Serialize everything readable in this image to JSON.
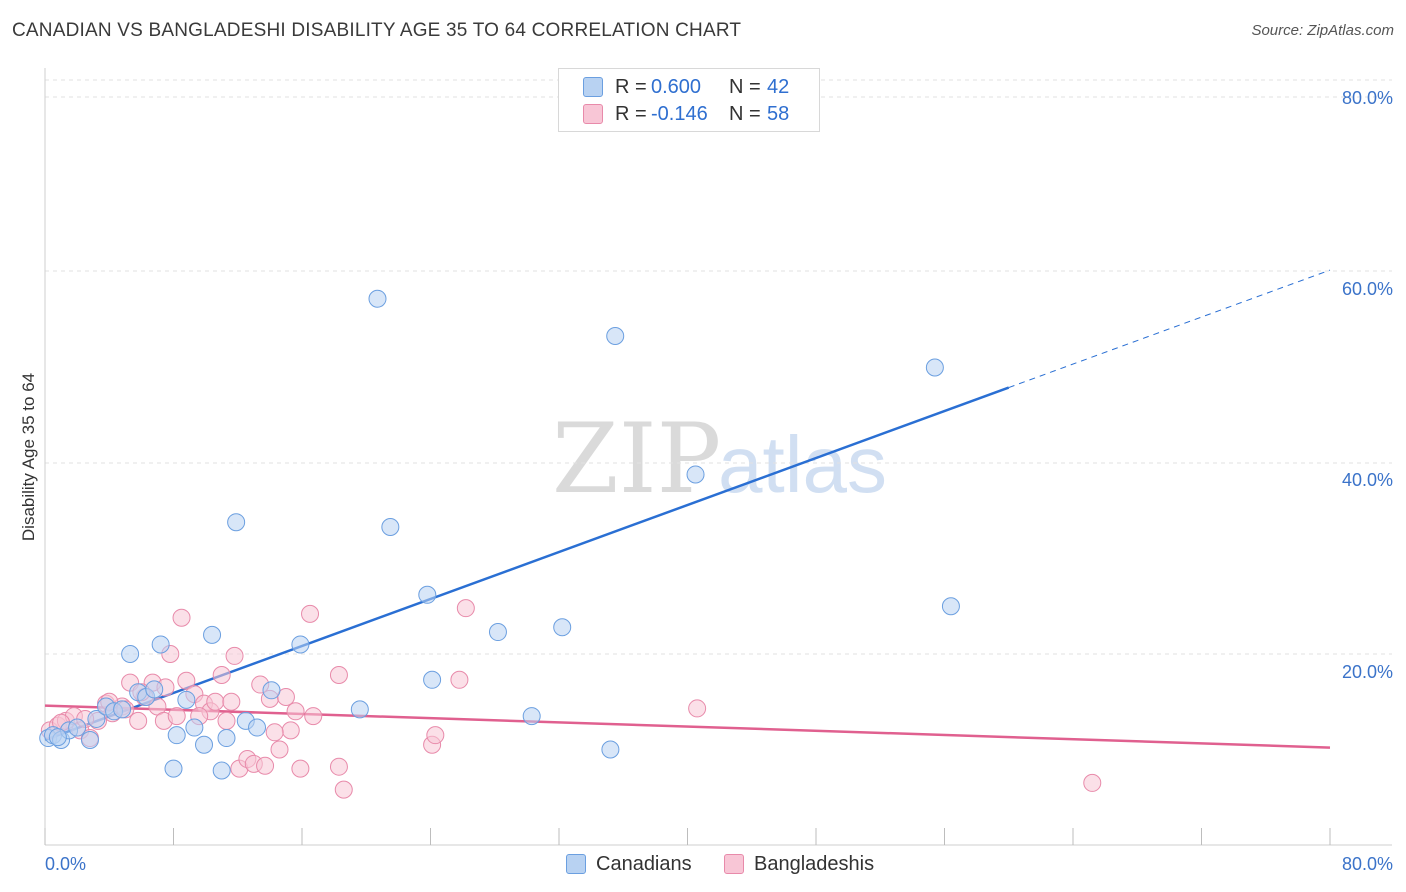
{
  "title": "CANADIAN VS BANGLADESHI DISABILITY AGE 35 TO 64 CORRELATION CHART",
  "source": "Source: ZipAtlas.com",
  "watermark": {
    "zip": "ZIP",
    "atlas": "atlas"
  },
  "legend": {
    "canadians": {
      "r_label": "R =",
      "r_value": "0.600",
      "n_label": "N =",
      "n_value": "42"
    },
    "bangladeshis": {
      "r_label": "R =",
      "r_value": "-0.146",
      "n_label": "N =",
      "n_value": "58"
    }
  },
  "colors": {
    "canadians_fill": "#b8d2f2",
    "canadians_stroke": "#6b9fe0",
    "canadians_line": "#2a6fd3",
    "bangladeshis_fill": "#f8c6d6",
    "bangladeshis_stroke": "#e88aaa",
    "bangladeshis_line": "#e0608f",
    "tick_label": "#3b73c9",
    "grid": "#e2e2e2"
  },
  "chart_data": {
    "type": "scatter",
    "title": "CANADIAN VS BANGLADESHI DISABILITY AGE 35 TO 64 CORRELATION CHART",
    "xlabel": "",
    "ylabel": "Disability Age 35 to 64",
    "xlim": [
      0,
      80
    ],
    "ylim": [
      0,
      80
    ],
    "x_tick_labels": [
      "0.0%",
      "80.0%"
    ],
    "y_ticks": [
      20,
      40,
      60,
      80
    ],
    "y_tick_labels": [
      "20.0%",
      "40.0%",
      "60.0%",
      "80.0%"
    ],
    "grid": true,
    "legend_position": "top-center",
    "series": [
      {
        "name": "Canadians",
        "r": 0.6,
        "n": 42,
        "points": [
          [
            0.2,
            11.2
          ],
          [
            0.5,
            11.5
          ],
          [
            1.0,
            11.0
          ],
          [
            1.5,
            12.0
          ],
          [
            2.0,
            12.3
          ],
          [
            2.8,
            11.0
          ],
          [
            3.2,
            13.2
          ],
          [
            3.8,
            14.5
          ],
          [
            4.3,
            14.0
          ],
          [
            4.8,
            14.2
          ],
          [
            5.3,
            20.0
          ],
          [
            5.8,
            16.0
          ],
          [
            6.3,
            15.5
          ],
          [
            6.8,
            16.3
          ],
          [
            7.2,
            21.0
          ],
          [
            8.0,
            8.0
          ],
          [
            8.2,
            11.5
          ],
          [
            8.8,
            15.2
          ],
          [
            9.3,
            12.3
          ],
          [
            9.9,
            10.5
          ],
          [
            10.4,
            22.0
          ],
          [
            11.0,
            7.8
          ],
          [
            11.3,
            11.2
          ],
          [
            11.9,
            33.8
          ],
          [
            12.5,
            13.0
          ],
          [
            13.2,
            12.3
          ],
          [
            14.1,
            16.2
          ],
          [
            15.9,
            21.0
          ],
          [
            19.6,
            14.2
          ],
          [
            20.7,
            57.2
          ],
          [
            21.5,
            33.3
          ],
          [
            23.8,
            26.2
          ],
          [
            24.1,
            17.3
          ],
          [
            28.2,
            22.3
          ],
          [
            30.3,
            13.5
          ],
          [
            32.2,
            22.8
          ],
          [
            35.2,
            10.0
          ],
          [
            35.5,
            53.3
          ],
          [
            40.5,
            38.8
          ],
          [
            55.4,
            50.0
          ],
          [
            56.4,
            25.0
          ],
          [
            0.8,
            11.3
          ]
        ],
        "trend": {
          "x0": 0.0,
          "y0": 11.0,
          "x1": 60.0,
          "y1": 47.9,
          "dash_to_x": 80.0,
          "dash_to_y": 60.2
        }
      },
      {
        "name": "Bangladeshis",
        "r": -0.146,
        "n": 58,
        "points": [
          [
            0.3,
            12.0
          ],
          [
            0.8,
            12.5
          ],
          [
            1.3,
            13.0
          ],
          [
            1.8,
            13.5
          ],
          [
            2.2,
            12.0
          ],
          [
            2.8,
            11.2
          ],
          [
            3.3,
            13.0
          ],
          [
            3.8,
            14.8
          ],
          [
            4.2,
            13.8
          ],
          [
            4.8,
            14.5
          ],
          [
            5.3,
            17.0
          ],
          [
            5.8,
            13.0
          ],
          [
            6.2,
            15.5
          ],
          [
            6.7,
            17.0
          ],
          [
            7.0,
            14.5
          ],
          [
            7.4,
            13.0
          ],
          [
            7.8,
            20.0
          ],
          [
            8.2,
            13.5
          ],
          [
            8.5,
            23.8
          ],
          [
            8.8,
            17.2
          ],
          [
            9.3,
            15.8
          ],
          [
            9.9,
            14.8
          ],
          [
            10.3,
            14.0
          ],
          [
            10.6,
            15.0
          ],
          [
            11.0,
            17.8
          ],
          [
            11.3,
            13.0
          ],
          [
            11.6,
            15.0
          ],
          [
            11.8,
            19.8
          ],
          [
            12.1,
            8.0
          ],
          [
            12.6,
            9.0
          ],
          [
            13.0,
            8.5
          ],
          [
            13.4,
            16.8
          ],
          [
            13.7,
            8.3
          ],
          [
            14.0,
            15.3
          ],
          [
            14.6,
            10.0
          ],
          [
            15.0,
            15.5
          ],
          [
            15.3,
            12.0
          ],
          [
            15.6,
            14.0
          ],
          [
            15.9,
            8.0
          ],
          [
            16.5,
            24.2
          ],
          [
            16.7,
            13.5
          ],
          [
            18.3,
            8.2
          ],
          [
            18.3,
            17.8
          ],
          [
            18.6,
            5.8
          ],
          [
            24.1,
            10.5
          ],
          [
            24.3,
            11.5
          ],
          [
            25.8,
            17.3
          ],
          [
            26.2,
            24.8
          ],
          [
            40.6,
            14.3
          ],
          [
            65.2,
            6.5
          ],
          [
            1.0,
            12.8
          ],
          [
            2.5,
            13.2
          ],
          [
            4.0,
            15.0
          ],
          [
            5.0,
            14.2
          ],
          [
            6.0,
            16.0
          ],
          [
            7.5,
            16.5
          ],
          [
            9.6,
            13.5
          ],
          [
            14.3,
            11.8
          ]
        ],
        "trend": {
          "x0": 0.0,
          "y0": 14.6,
          "x1": 80.0,
          "y1": 10.2
        }
      }
    ]
  }
}
